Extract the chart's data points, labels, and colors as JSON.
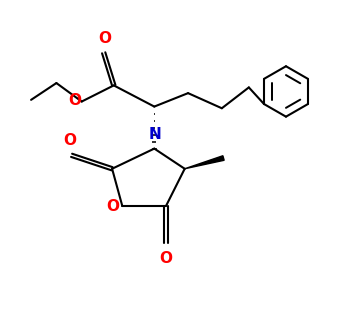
{
  "background_color": "#ffffff",
  "bond_color": "#000000",
  "oxygen_color": "#ff0000",
  "nitrogen_color": "#0000cd",
  "line_width": 1.5,
  "figsize": [
    3.39,
    3.14
  ],
  "dpi": 100,
  "xlim": [
    0,
    10
  ],
  "ylim": [
    0,
    9.3
  ]
}
